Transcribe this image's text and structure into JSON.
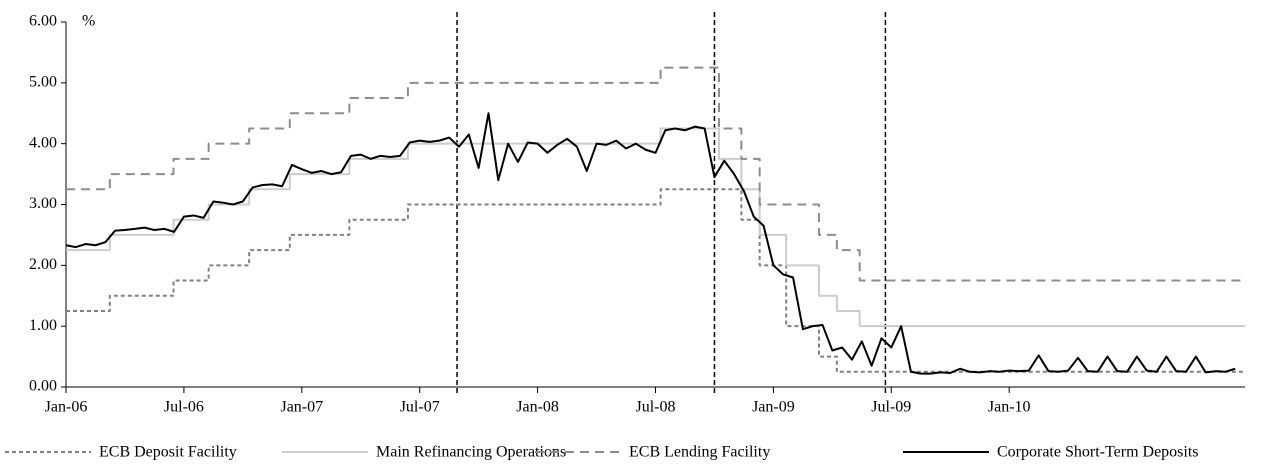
{
  "chart_data": {
    "type": "line",
    "y_label": "%",
    "xlim": [
      0,
      60
    ],
    "xticks": [
      {
        "value": 0,
        "label": "Jan-06"
      },
      {
        "value": 6,
        "label": "Jul-06"
      },
      {
        "value": 12,
        "label": "Jan-07"
      },
      {
        "value": 18,
        "label": "Jul-07"
      },
      {
        "value": 24,
        "label": "Jan-08"
      },
      {
        "value": 30,
        "label": "Jul-08"
      },
      {
        "value": 36,
        "label": "Jan-09"
      },
      {
        "value": 42,
        "label": "Jul-09"
      },
      {
        "value": 48,
        "label": "Jan-10"
      }
    ],
    "ylim": [
      0,
      6
    ],
    "yticks": [
      {
        "value": 0,
        "label": "0.00"
      },
      {
        "value": 1,
        "label": "1.00"
      },
      {
        "value": 2,
        "label": "2.00"
      },
      {
        "value": 3,
        "label": "3.00"
      },
      {
        "value": 4,
        "label": "4.00"
      },
      {
        "value": 5,
        "label": "5.00"
      },
      {
        "value": 6,
        "label": "6.00"
      }
    ],
    "grid": false,
    "legend": "bottom",
    "vlines": [
      19.9,
      33.0,
      41.7
    ],
    "series": [
      {
        "name": "ECB Deposit Facility",
        "color": "#808080",
        "style": "dotted",
        "x": [
          0,
          2.23,
          2.23,
          5.47,
          5.47,
          7.26,
          7.26,
          9.32,
          9.32,
          11.39,
          11.39,
          14.42,
          14.42,
          17.4,
          17.4,
          30.26,
          30.26,
          34.37,
          34.37,
          35.3,
          35.3,
          36.65,
          36.65,
          38.32,
          38.32,
          39.23,
          39.23,
          60
        ],
        "values": [
          1.25,
          1.25,
          1.5,
          1.5,
          1.75,
          1.75,
          2,
          2,
          2.25,
          2.25,
          2.5,
          2.5,
          2.75,
          2.75,
          3,
          3,
          3.25,
          3.25,
          2.75,
          2.75,
          2,
          2,
          1,
          1,
          0.5,
          0.5,
          0.25,
          0.25
        ]
      },
      {
        "name": "Main Refinancing Operations",
        "color": "#cccccc",
        "style": "solid",
        "x": [
          0,
          2.23,
          2.23,
          5.47,
          5.47,
          7.26,
          7.26,
          9.32,
          9.32,
          11.39,
          11.39,
          14.42,
          14.42,
          17.4,
          17.4,
          30.26,
          30.26,
          33.23,
          33.23,
          34.37,
          34.37,
          35.3,
          35.3,
          36.65,
          36.65,
          38.32,
          38.32,
          39.23,
          39.23,
          40.39,
          40.39,
          60
        ],
        "values": [
          2.25,
          2.25,
          2.5,
          2.5,
          2.75,
          2.75,
          3,
          3,
          3.25,
          3.25,
          3.5,
          3.5,
          3.75,
          3.75,
          4,
          4,
          4.25,
          4.25,
          3.75,
          3.75,
          3.25,
          3.25,
          2.5,
          2.5,
          2,
          2,
          1.5,
          1.5,
          1.25,
          1.25,
          1,
          1
        ]
      },
      {
        "name": "ECB Lending Facility",
        "color": "#8c8c8c",
        "style": "dashed",
        "x": [
          0,
          2.23,
          2.23,
          5.47,
          5.47,
          7.26,
          7.26,
          9.32,
          9.32,
          11.39,
          11.39,
          14.42,
          14.42,
          17.4,
          17.4,
          30.26,
          30.26,
          33.23,
          33.23,
          34.37,
          34.37,
          35.3,
          35.3,
          38.32,
          38.32,
          39.23,
          39.23,
          40.39,
          40.39,
          60
        ],
        "values": [
          3.25,
          3.25,
          3.5,
          3.5,
          3.75,
          3.75,
          4,
          4,
          4.25,
          4.25,
          4.5,
          4.5,
          4.75,
          4.75,
          5,
          5,
          5.25,
          5.25,
          4.25,
          4.25,
          3.75,
          3.75,
          3,
          3,
          2.5,
          2.5,
          2.25,
          2.25,
          1.75,
          1.75
        ]
      },
      {
        "name": "Corporate Short-Term Deposits",
        "color": "#000000",
        "style": "solid",
        "x": [
          0,
          0.5,
          1,
          1.5,
          2,
          2.5,
          3,
          3.5,
          4,
          4.5,
          5,
          5.5,
          6,
          6.5,
          7,
          7.5,
          8,
          8.5,
          9,
          9.5,
          10,
          10.5,
          11,
          11.5,
          12,
          12.5,
          13,
          13.5,
          14,
          14.5,
          15,
          15.5,
          16,
          16.5,
          17,
          17.5,
          18,
          18.5,
          19,
          19.5,
          20,
          20.5,
          21,
          21.5,
          22,
          22.5,
          23,
          23.5,
          24,
          24.5,
          25,
          25.5,
          26,
          26.5,
          27,
          27.5,
          28,
          28.5,
          29,
          29.5,
          30,
          30.5,
          31,
          31.5,
          32,
          32.5,
          33,
          33.5,
          34,
          34.5,
          35,
          35.5,
          36,
          36.5,
          37,
          37.5,
          38,
          38.5,
          39,
          39.5,
          40,
          40.5,
          41,
          41.5,
          42,
          42.5,
          43,
          43.5,
          44,
          44.5,
          45,
          45.5,
          46,
          46.5,
          47,
          47.5,
          48,
          48.5,
          49,
          49.5,
          50,
          50.5,
          51,
          51.5,
          52,
          52.5,
          53,
          53.5,
          54,
          54.5,
          55,
          55.5,
          56,
          56.5,
          57,
          57.5,
          58,
          58.5,
          59,
          59.5
        ],
        "values": [
          2.33,
          2.3,
          2.35,
          2.33,
          2.38,
          2.57,
          2.58,
          2.6,
          2.62,
          2.58,
          2.6,
          2.55,
          2.8,
          2.82,
          2.78,
          3.05,
          3.03,
          3.0,
          3.05,
          3.28,
          3.32,
          3.33,
          3.3,
          3.65,
          3.58,
          3.52,
          3.55,
          3.5,
          3.53,
          3.8,
          3.82,
          3.75,
          3.8,
          3.78,
          3.8,
          4.02,
          4.05,
          4.03,
          4.05,
          4.1,
          3.95,
          4.15,
          3.6,
          4.5,
          3.4,
          4.0,
          3.7,
          4.02,
          4.0,
          3.85,
          3.98,
          4.08,
          3.95,
          3.55,
          4.0,
          3.98,
          4.05,
          3.92,
          4.0,
          3.9,
          3.85,
          4.22,
          4.25,
          4.22,
          4.28,
          4.25,
          3.45,
          3.72,
          3.5,
          3.22,
          2.8,
          2.65,
          2.0,
          1.85,
          1.8,
          0.95,
          1.0,
          1.02,
          0.6,
          0.65,
          0.45,
          0.75,
          0.35,
          0.8,
          0.65,
          1.0,
          0.25,
          0.22,
          0.22,
          0.24,
          0.23,
          0.3,
          0.25,
          0.24,
          0.26,
          0.25,
          0.27,
          0.26,
          0.27,
          0.52,
          0.26,
          0.25,
          0.27,
          0.48,
          0.26,
          0.25,
          0.5,
          0.26,
          0.25,
          0.5,
          0.27,
          0.25,
          0.5,
          0.26,
          0.25,
          0.5,
          0.24,
          0.26,
          0.25,
          0.3
        ]
      }
    ]
  }
}
